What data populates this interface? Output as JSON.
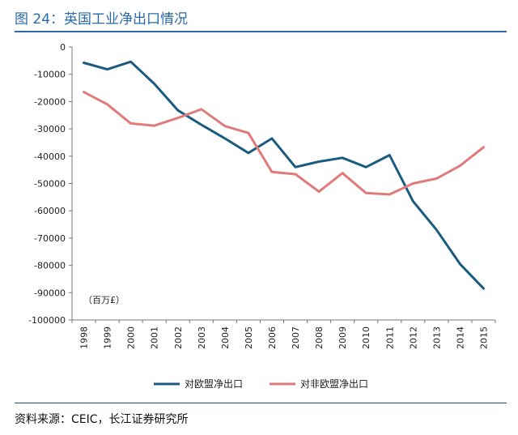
{
  "figure": {
    "title": "图 24：英国工业净出口情况",
    "source": "资料来源：CEIC，长江证券研究所"
  },
  "chart_data": {
    "type": "line",
    "title": "英国工业净出口情况",
    "unit_label": "（百万£）",
    "xlabel": "",
    "ylabel": "",
    "x": [
      "1998",
      "1999",
      "2000",
      "2001",
      "2002",
      "2003",
      "2004",
      "2005",
      "2006",
      "2007",
      "2008",
      "2009",
      "2010",
      "2011",
      "2012",
      "2013",
      "2014",
      "2015"
    ],
    "ylim": [
      -100000,
      0
    ],
    "yticks": [
      0,
      -10000,
      -20000,
      -30000,
      -40000,
      -50000,
      -60000,
      -70000,
      -80000,
      -90000,
      -100000
    ],
    "grid": false,
    "legend_position": "bottom",
    "series": [
      {
        "name": "对欧盟净出口",
        "color": "#1a5b80",
        "values": [
          -5800,
          -8200,
          -5400,
          -13500,
          -23200,
          -28500,
          -33500,
          -38800,
          -33500,
          -44000,
          -42000,
          -40600,
          -44000,
          -39600,
          -56500,
          -67000,
          -79500,
          -88500
        ]
      },
      {
        "name": "对非欧盟净出口",
        "color": "#e07b7b",
        "values": [
          -16500,
          -21000,
          -28000,
          -28800,
          -26000,
          -22800,
          -29000,
          -31500,
          -45800,
          -46600,
          -53000,
          -46200,
          -53500,
          -54000,
          -50000,
          -48200,
          -43500,
          -36700
        ]
      }
    ]
  }
}
